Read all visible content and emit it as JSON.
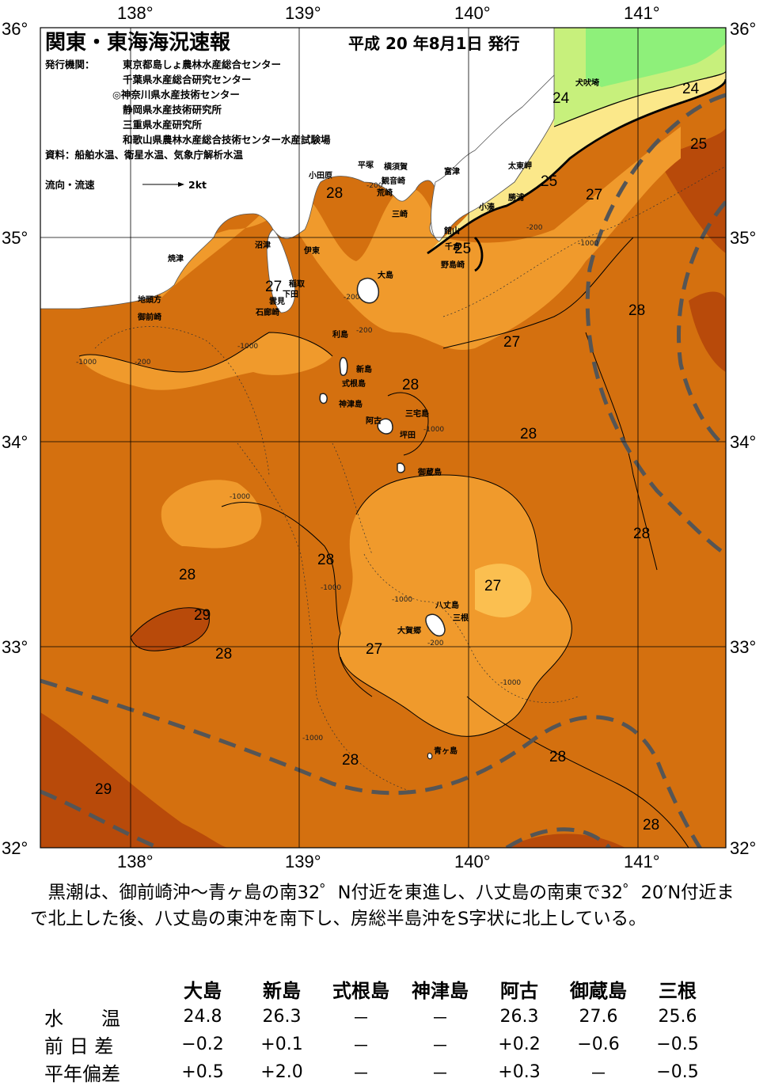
{
  "header": {
    "title": "関東・東海海況速報",
    "date": "平成 20 年8月1日 発行",
    "issuer_label": "発行機関：",
    "issuers": [
      "東京都島しょ農林水産総合センター",
      "千葉県水産総合研究センター",
      "◎神奈川県水産技術センター",
      "静岡県水産技術研究所",
      "三重県水産研究所",
      "和歌山県農林水産総合技術センター水産試験場"
    ],
    "source": "資料：船舶水温、衛星水温、気象庁解析水温",
    "current_label": "流向・流速",
    "current_scale": "2kt"
  },
  "axes": {
    "lon_labels": [
      "138°",
      "139°",
      "140°",
      "141°"
    ],
    "lat_labels": [
      "36°",
      "35°",
      "34°",
      "33°",
      "32°"
    ]
  },
  "colors": {
    "sea_29": "#b84a0a",
    "sea_28": "#d4700f",
    "sea_27": "#f09a2c",
    "sea_26": "#fbbf50",
    "sea_25": "#fbe88a",
    "sea_24": "#c7f07c",
    "sea_23": "#8ef07a",
    "kuroshio": "#555555"
  },
  "isotherm_labels": [
    "24",
    "24",
    "25",
    "25",
    "25",
    "27",
    "27",
    "27",
    "27",
    "27",
    "28",
    "28",
    "28",
    "28",
    "28",
    "28",
    "28",
    "28",
    "28",
    "28",
    "28",
    "29",
    "29"
  ],
  "place_names": [
    "小田原",
    "平塚",
    "横須賀",
    "観音崎",
    "荒崎",
    "三崎",
    "富津",
    "太東岬",
    "犬吠埼",
    "勝浦",
    "小湊",
    "館山",
    "千倉",
    "野島崎",
    "沼津",
    "伊東",
    "焼津",
    "稲取",
    "下田",
    "雲見",
    "石廊崎",
    "地頭方",
    "御前崎",
    "大島",
    "利島",
    "新島",
    "式根島",
    "神津島",
    "三宅島",
    "阿古",
    "坪田",
    "御蔵島",
    "八丈島",
    "三根",
    "大賀郷",
    "青ヶ島"
  ],
  "depth_labels": [
    "-200",
    "-200",
    "-200",
    "-200",
    "-200",
    "-1000",
    "-1000",
    "-1000",
    "-1000",
    "-1000",
    "-1000",
    "-1000",
    "-1000",
    "-200",
    "-1000"
  ],
  "summary": "黒潮は、御前崎沖～青ヶ島の南32゜N付近を東進し、八丈島の南東で32゜20′N付近まで北上した後、八丈島の東沖を南下し、房総半島沖をS字状に北上している。",
  "stats": {
    "columns": [
      "大島",
      "新島",
      "式根島",
      "神津島",
      "阿古",
      "御蔵島",
      "三根"
    ],
    "rows": [
      {
        "label": "水　　温",
        "values": [
          "24.8",
          "26.3",
          "－",
          "－",
          "26.3",
          "27.6",
          "25.6"
        ]
      },
      {
        "label": "前 日 差",
        "values": [
          "−0.2",
          "+0.1",
          "－",
          "－",
          "+0.2",
          "−0.6",
          "−0.5"
        ]
      },
      {
        "label": "平年偏差",
        "values": [
          "+0.5",
          "+2.0",
          "－",
          "－",
          "+0.3",
          "－",
          "−0.5"
        ]
      }
    ]
  }
}
